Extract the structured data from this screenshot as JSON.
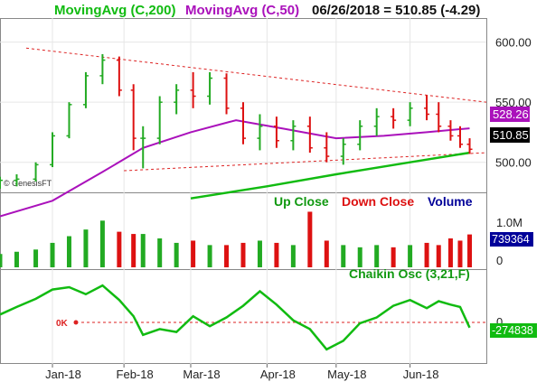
{
  "chart_data": {
    "type": "candlestick",
    "header": {
      "ma200_label": "MovingAvg (C,200)",
      "ma50_label": "MovingAvg (C,50)",
      "quote": "06/26/2018 = 510.85 (-4.29)"
    },
    "watermark": "© GenesisFT",
    "colors": {
      "up": "#22aa22",
      "down": "#dd1111",
      "ma200": "#11bb11",
      "ma50": "#aa11bb",
      "trend": "#dd2222",
      "text_blue": "#000099"
    },
    "price_axis": {
      "ticks": [
        500,
        550,
        600
      ],
      "tick_labels": [
        "500.00",
        "550.00",
        "600.00"
      ],
      "range": [
        475,
        620
      ]
    },
    "price_tags": {
      "ma50": "528.26",
      "last": "510.85"
    },
    "x_labels": [
      "Jan-18",
      "Feb-18",
      "Mar-18",
      "Apr-18",
      "May-18",
      "Jun-18"
    ],
    "x_ticks": [
      "2018-01-02",
      "2018-02-01",
      "2018-03-01",
      "2018-04-02",
      "2018-05-01",
      "2018-06-01"
    ],
    "x_range": [
      "2017-12-11",
      "2018-07-03"
    ],
    "volume_panel": {
      "legend": [
        "Up Close",
        "Down Close",
        "Volume"
      ],
      "axis_label": "1.0M",
      "zero_label": "0",
      "last_tag": "739364",
      "range": [
        0,
        1300000
      ]
    },
    "osc_panel": {
      "label": "Chaikin Osc (3,21,F)",
      "zero_marker": "0K",
      "zero_label": "0",
      "last_tag": "-274838",
      "range": [
        -900000,
        700000
      ],
      "points": [
        [
          "2017-12-11",
          -50000
        ],
        [
          "2017-12-18",
          80000
        ],
        [
          "2017-12-26",
          220000
        ],
        [
          "2018-01-02",
          380000
        ],
        [
          "2018-01-09",
          420000
        ],
        [
          "2018-01-16",
          300000
        ],
        [
          "2018-01-23",
          450000
        ],
        [
          "2018-01-30",
          200000
        ],
        [
          "2018-02-05",
          -80000
        ],
        [
          "2018-02-09",
          -400000
        ],
        [
          "2018-02-16",
          -300000
        ],
        [
          "2018-02-23",
          -350000
        ],
        [
          "2018-03-02",
          -80000
        ],
        [
          "2018-03-09",
          -250000
        ],
        [
          "2018-03-16",
          -100000
        ],
        [
          "2018-03-23",
          100000
        ],
        [
          "2018-03-30",
          350000
        ],
        [
          "2018-04-06",
          120000
        ],
        [
          "2018-04-13",
          -150000
        ],
        [
          "2018-04-20",
          -300000
        ],
        [
          "2018-04-27",
          -650000
        ],
        [
          "2018-05-04",
          -500000
        ],
        [
          "2018-05-11",
          -200000
        ],
        [
          "2018-05-18",
          -100000
        ],
        [
          "2018-05-25",
          100000
        ],
        [
          "2018-06-01",
          200000
        ],
        [
          "2018-06-08",
          60000
        ],
        [
          "2018-06-13",
          180000
        ],
        [
          "2018-06-18",
          120000
        ],
        [
          "2018-06-22",
          80000
        ],
        [
          "2018-06-26",
          -274838
        ]
      ]
    },
    "ohlc_bars": [
      {
        "date": "2017-12-11",
        "o": 483,
        "h": 488,
        "l": 478,
        "c": 485,
        "v": 300000
      },
      {
        "date": "2017-12-18",
        "o": 485,
        "h": 490,
        "l": 480,
        "c": 486,
        "v": 350000
      },
      {
        "date": "2017-12-26",
        "o": 486,
        "h": 500,
        "l": 484,
        "c": 498,
        "v": 400000
      },
      {
        "date": "2018-01-02",
        "o": 498,
        "h": 525,
        "l": 496,
        "c": 522,
        "v": 550000
      },
      {
        "date": "2018-01-09",
        "o": 522,
        "h": 550,
        "l": 520,
        "c": 548,
        "v": 700000
      },
      {
        "date": "2018-01-16",
        "o": 548,
        "h": 575,
        "l": 545,
        "c": 572,
        "v": 850000
      },
      {
        "date": "2018-01-23",
        "o": 572,
        "h": 590,
        "l": 565,
        "c": 585,
        "v": 1050000
      },
      {
        "date": "2018-01-30",
        "o": 585,
        "h": 588,
        "l": 555,
        "c": 560,
        "v": 800000
      },
      {
        "date": "2018-02-05",
        "o": 560,
        "h": 565,
        "l": 510,
        "c": 520,
        "v": 750000
      },
      {
        "date": "2018-02-09",
        "o": 520,
        "h": 530,
        "l": 495,
        "c": 520,
        "v": 750000
      },
      {
        "date": "2018-02-16",
        "o": 520,
        "h": 555,
        "l": 515,
        "c": 550,
        "v": 650000
      },
      {
        "date": "2018-02-23",
        "o": 550,
        "h": 565,
        "l": 540,
        "c": 560,
        "v": 550000
      },
      {
        "date": "2018-03-02",
        "o": 560,
        "h": 575,
        "l": 545,
        "c": 555,
        "v": 600000
      },
      {
        "date": "2018-03-09",
        "o": 555,
        "h": 575,
        "l": 548,
        "c": 570,
        "v": 500000
      },
      {
        "date": "2018-03-16",
        "o": 570,
        "h": 574,
        "l": 540,
        "c": 545,
        "v": 500000
      },
      {
        "date": "2018-03-23",
        "o": 545,
        "h": 550,
        "l": 515,
        "c": 520,
        "v": 550000
      },
      {
        "date": "2018-03-30",
        "o": 520,
        "h": 540,
        "l": 510,
        "c": 530,
        "v": 600000
      },
      {
        "date": "2018-04-06",
        "o": 530,
        "h": 538,
        "l": 512,
        "c": 518,
        "v": 550000
      },
      {
        "date": "2018-04-13",
        "o": 518,
        "h": 535,
        "l": 510,
        "c": 530,
        "v": 500000
      },
      {
        "date": "2018-04-20",
        "o": 530,
        "h": 538,
        "l": 508,
        "c": 512,
        "v": 1250000
      },
      {
        "date": "2018-04-27",
        "o": 512,
        "h": 525,
        "l": 500,
        "c": 505,
        "v": 600000
      },
      {
        "date": "2018-05-04",
        "o": 505,
        "h": 520,
        "l": 498,
        "c": 515,
        "v": 500000
      },
      {
        "date": "2018-05-11",
        "o": 515,
        "h": 535,
        "l": 510,
        "c": 530,
        "v": 450000
      },
      {
        "date": "2018-05-18",
        "o": 530,
        "h": 545,
        "l": 522,
        "c": 538,
        "v": 500000
      },
      {
        "date": "2018-05-25",
        "o": 538,
        "h": 545,
        "l": 528,
        "c": 535,
        "v": 450000
      },
      {
        "date": "2018-06-01",
        "o": 535,
        "h": 550,
        "l": 530,
        "c": 545,
        "v": 500000
      },
      {
        "date": "2018-06-08",
        "o": 545,
        "h": 556,
        "l": 535,
        "c": 540,
        "v": 550000
      },
      {
        "date": "2018-06-13",
        "o": 540,
        "h": 550,
        "l": 525,
        "c": 530,
        "v": 500000
      },
      {
        "date": "2018-06-18",
        "o": 530,
        "h": 535,
        "l": 518,
        "c": 522,
        "v": 650000
      },
      {
        "date": "2018-06-22",
        "o": 522,
        "h": 530,
        "l": 512,
        "c": 515,
        "v": 600000
      },
      {
        "date": "2018-06-26",
        "o": 515,
        "h": 520,
        "l": 507,
        "c": 510.85,
        "v": 739364
      }
    ],
    "ma50_points": [
      [
        "2017-12-11",
        455
      ],
      [
        "2018-01-02",
        468
      ],
      [
        "2018-01-23",
        492
      ],
      [
        "2018-02-09",
        512
      ],
      [
        "2018-03-01",
        525
      ],
      [
        "2018-03-20",
        535
      ],
      [
        "2018-04-09",
        528
      ],
      [
        "2018-05-01",
        520
      ],
      [
        "2018-05-21",
        522
      ],
      [
        "2018-06-08",
        525
      ],
      [
        "2018-06-26",
        528.26
      ]
    ],
    "ma200_points": [
      [
        "2018-03-01",
        470
      ],
      [
        "2018-04-02",
        480
      ],
      [
        "2018-05-01",
        490
      ],
      [
        "2018-06-01",
        500
      ],
      [
        "2018-06-26",
        508
      ]
    ],
    "trend_lines": [
      {
        "from": [
          "2017-12-22",
          595
        ],
        "to": [
          "2018-07-03",
          550
        ]
      },
      {
        "from": [
          "2018-02-01",
          493
        ],
        "to": [
          "2018-07-03",
          508
        ]
      }
    ]
  }
}
